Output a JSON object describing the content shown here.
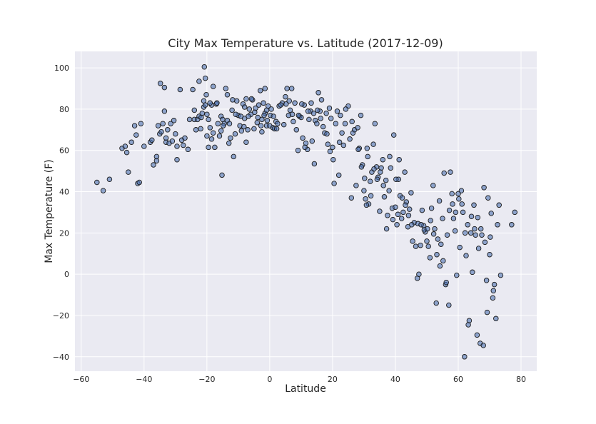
{
  "colors": {
    "plot_background": "#eaeaf2",
    "grid": "#ffffff",
    "marker_fill": "#4c72b0",
    "marker_edge": "#1a1a1a",
    "text": "#262626"
  },
  "chart_data": {
    "type": "scatter",
    "title": "City Max Temperature vs. Latitude (2017-12-09)",
    "xlabel": "Latitude",
    "ylabel": "Max Temperature (F)",
    "xlim": [
      -62,
      85
    ],
    "ylim": [
      -47,
      108
    ],
    "xticks": [
      -60,
      -40,
      -20,
      0,
      20,
      40,
      60,
      80
    ],
    "yticks": [
      -40,
      -20,
      0,
      20,
      40,
      60,
      80,
      100
    ],
    "xtick_labels": [
      "−60",
      "−40",
      "−20",
      "0",
      "20",
      "40",
      "60",
      "80"
    ],
    "ytick_labels": [
      "−40",
      "−20",
      "0",
      "20",
      "40",
      "60",
      "80",
      "100"
    ],
    "grid": true,
    "marker_alpha": 0.6,
    "points": [
      [
        -55,
        44.5
      ],
      [
        -53,
        40.5
      ],
      [
        -51,
        46
      ],
      [
        -47,
        61
      ],
      [
        -46,
        62
      ],
      [
        -45.5,
        59
      ],
      [
        -45,
        49.5
      ],
      [
        -43,
        72
      ],
      [
        -42.5,
        67.5
      ],
      [
        -42,
        44
      ],
      [
        -41.5,
        44.5
      ],
      [
        -41,
        73
      ],
      [
        -40,
        62
      ],
      [
        -38,
        64
      ],
      [
        -37.5,
        65
      ],
      [
        -37,
        53
      ],
      [
        -36,
        55
      ],
      [
        -35.5,
        72
      ],
      [
        -35,
        68
      ],
      [
        -34.8,
        92.5
      ],
      [
        -34.5,
        69
      ],
      [
        -34,
        73
      ],
      [
        -33.5,
        90.5
      ],
      [
        -33.5,
        79
      ],
      [
        -33,
        66
      ],
      [
        -33,
        64
      ],
      [
        -32,
        63.5
      ],
      [
        -31.5,
        73
      ],
      [
        -30.5,
        74.5
      ],
      [
        -30,
        68
      ],
      [
        -29.5,
        62
      ],
      [
        -29.5,
        55.5
      ],
      [
        -28.5,
        89.5
      ],
      [
        -28,
        65
      ],
      [
        -27.5,
        62.5
      ],
      [
        -26,
        60.5
      ],
      [
        -24.5,
        89.5
      ],
      [
        -24,
        79.5
      ],
      [
        -24,
        75
      ],
      [
        -23,
        75
      ],
      [
        -22.5,
        93.5
      ],
      [
        -22.5,
        76.5
      ],
      [
        -22,
        70.5
      ],
      [
        -21.5,
        78
      ],
      [
        -21,
        84
      ],
      [
        -21,
        81
      ],
      [
        -20.8,
        100.5
      ],
      [
        -20.5,
        95
      ],
      [
        -20.5,
        82
      ],
      [
        -20,
        77.5
      ],
      [
        -20,
        67
      ],
      [
        -19.5,
        61.5
      ],
      [
        -19.5,
        75
      ],
      [
        -19,
        71
      ],
      [
        -18.5,
        82
      ],
      [
        -18.5,
        65.5
      ],
      [
        -18,
        91
      ],
      [
        -18,
        68.5
      ],
      [
        -17.5,
        61.5
      ],
      [
        -17,
        82.5
      ],
      [
        -16.5,
        73
      ],
      [
        -16,
        67
      ],
      [
        -15.5,
        76.5
      ],
      [
        -15.5,
        69.5
      ],
      [
        -15.2,
        48
      ],
      [
        -15,
        75
      ],
      [
        -14.5,
        73
      ],
      [
        -14,
        90
      ],
      [
        -13.5,
        87
      ],
      [
        -13.5,
        74.5
      ],
      [
        -13,
        63.5
      ],
      [
        -12.5,
        66
      ],
      [
        -12,
        79.5
      ],
      [
        -11.5,
        57
      ],
      [
        -11,
        68
      ],
      [
        -10.5,
        84
      ],
      [
        -10,
        77
      ],
      [
        -9.5,
        72
      ],
      [
        -9,
        69.5
      ],
      [
        -8.5,
        82.5
      ],
      [
        -8,
        81
      ],
      [
        -8,
        75.5
      ],
      [
        -7.5,
        85
      ],
      [
        -7.5,
        64
      ],
      [
        -7,
        70
      ],
      [
        -6.5,
        80
      ],
      [
        -6,
        77.5
      ],
      [
        -5.5,
        84.5
      ],
      [
        -5,
        70.5
      ],
      [
        -4.5,
        80.5
      ],
      [
        -4,
        73.5
      ],
      [
        -3.5,
        82
      ],
      [
        -3,
        89
      ],
      [
        -2.5,
        75
      ],
      [
        -2.5,
        69
      ],
      [
        -2,
        83
      ],
      [
        -1.5,
        90
      ],
      [
        -1.5,
        78
      ],
      [
        -1,
        79.5
      ],
      [
        -1,
        72
      ],
      [
        -0.5,
        81.5
      ],
      [
        0,
        72
      ],
      [
        0.5,
        80
      ],
      [
        1,
        71
      ],
      [
        1.5,
        70.5
      ],
      [
        2,
        74
      ],
      [
        2.5,
        73
      ],
      [
        3,
        81.5
      ],
      [
        4,
        83
      ],
      [
        4.5,
        72.5
      ],
      [
        5,
        86
      ],
      [
        5.5,
        90
      ],
      [
        6,
        77
      ],
      [
        6.5,
        79.5
      ],
      [
        7,
        90
      ],
      [
        7.5,
        74
      ],
      [
        8,
        83
      ],
      [
        8.5,
        70
      ],
      [
        9,
        60
      ],
      [
        9.5,
        76.5
      ],
      [
        10,
        76
      ],
      [
        10.5,
        66
      ],
      [
        11,
        82
      ],
      [
        11.5,
        63.5
      ],
      [
        12,
        60.5
      ],
      [
        12.5,
        75
      ],
      [
        13,
        79
      ],
      [
        13.5,
        64.5
      ],
      [
        14,
        78
      ],
      [
        14.5,
        74.5
      ],
      [
        15,
        73
      ],
      [
        15.5,
        88
      ],
      [
        16,
        79
      ],
      [
        16.5,
        84.5
      ],
      [
        17,
        71.5
      ],
      [
        17.5,
        68.5
      ],
      [
        18,
        78
      ],
      [
        18.5,
        63
      ],
      [
        19,
        80.5
      ],
      [
        19.5,
        75.5
      ],
      [
        20,
        61.5
      ],
      [
        20.5,
        44
      ],
      [
        21,
        73
      ],
      [
        21.5,
        79
      ],
      [
        22,
        48
      ],
      [
        22.5,
        77
      ],
      [
        23,
        68.5
      ],
      [
        23.5,
        62.5
      ],
      [
        24,
        73
      ],
      [
        25,
        81.5
      ],
      [
        25.5,
        65.5
      ],
      [
        26,
        37
      ],
      [
        26.5,
        68.5
      ],
      [
        27,
        70
      ],
      [
        27.5,
        43
      ],
      [
        28,
        71
      ],
      [
        28.5,
        61
      ],
      [
        29,
        77
      ],
      [
        29.5,
        53
      ],
      [
        30,
        40.5
      ],
      [
        30.5,
        36.5
      ],
      [
        31,
        61
      ],
      [
        31.5,
        34
      ],
      [
        32,
        45
      ],
      [
        32.5,
        49.5
      ],
      [
        33,
        63
      ],
      [
        33.5,
        73
      ],
      [
        34,
        52
      ],
      [
        34.5,
        47
      ],
      [
        35,
        30.5
      ],
      [
        35.5,
        51.5
      ],
      [
        36,
        55.5
      ],
      [
        36.5,
        37.5
      ],
      [
        37,
        45.5
      ],
      [
        37.5,
        28.5
      ],
      [
        38,
        40.5
      ],
      [
        38.5,
        51.5
      ],
      [
        39,
        32
      ],
      [
        39.5,
        67.5
      ],
      [
        40,
        32.5
      ],
      [
        40.5,
        24
      ],
      [
        41,
        46
      ],
      [
        41.5,
        38
      ],
      [
        42,
        27
      ],
      [
        42.5,
        30
      ],
      [
        43,
        49.5
      ],
      [
        43.5,
        35
      ],
      [
        44,
        23
      ],
      [
        44.5,
        31.5
      ],
      [
        45,
        39.5
      ],
      [
        45.5,
        16
      ],
      [
        46,
        25
      ],
      [
        46.5,
        13.5
      ],
      [
        47,
        -2
      ],
      [
        47.5,
        0
      ],
      [
        48,
        14
      ],
      [
        48.5,
        31
      ],
      [
        49,
        23.5
      ],
      [
        49.5,
        20.5
      ],
      [
        50,
        16
      ],
      [
        50.5,
        13.5
      ],
      [
        51,
        8
      ],
      [
        51.5,
        32
      ],
      [
        52,
        43
      ],
      [
        52.5,
        22
      ],
      [
        53,
        -14
      ],
      [
        53.5,
        17
      ],
      [
        54,
        35.5
      ],
      [
        54.5,
        14.5
      ],
      [
        55,
        27
      ],
      [
        55.5,
        49
      ],
      [
        56,
        -5
      ],
      [
        56.5,
        19
      ],
      [
        57,
        -15
      ],
      [
        57.5,
        49.5
      ],
      [
        58,
        39
      ],
      [
        58.5,
        27
      ],
      [
        59,
        21
      ],
      [
        59.5,
        -0.5
      ],
      [
        60,
        39
      ],
      [
        60.5,
        13
      ],
      [
        61,
        40.5
      ],
      [
        61.5,
        30
      ],
      [
        62,
        -40
      ],
      [
        62.5,
        9
      ],
      [
        63,
        24
      ],
      [
        63.5,
        -22.5
      ],
      [
        64,
        20
      ],
      [
        64.5,
        1
      ],
      [
        65,
        33.5
      ],
      [
        65.5,
        19
      ],
      [
        66,
        -29.5
      ],
      [
        66.5,
        12.5
      ],
      [
        67,
        -33.5
      ],
      [
        67.5,
        19
      ],
      [
        68,
        -34.5
      ],
      [
        68.5,
        15.5
      ],
      [
        69,
        -3
      ],
      [
        69.5,
        37
      ],
      [
        70,
        9.5
      ],
      [
        70.5,
        29.5
      ],
      [
        71,
        -11.5
      ],
      [
        71.5,
        -5
      ],
      [
        72,
        -21.5
      ],
      [
        72.5,
        24
      ],
      [
        73,
        33.5
      ],
      [
        73.5,
        -0.5
      ],
      [
        77,
        24
      ],
      [
        78,
        30
      ],
      [
        -44,
        64
      ],
      [
        -36,
        57
      ],
      [
        -32.5,
        70
      ],
      [
        -31,
        64.5
      ],
      [
        -27,
        66
      ],
      [
        -25.5,
        75
      ],
      [
        -23.5,
        70
      ],
      [
        -21.8,
        76
      ],
      [
        -20.2,
        87
      ],
      [
        -19,
        83
      ],
      [
        -16.8,
        83
      ],
      [
        -14.8,
        72
      ],
      [
        -12.8,
        73
      ],
      [
        -11.8,
        84.5
      ],
      [
        -10.8,
        77.5
      ],
      [
        -9.2,
        76.5
      ],
      [
        -8.2,
        71.5
      ],
      [
        -6.8,
        76.5
      ],
      [
        -5.8,
        85
      ],
      [
        -4.8,
        78.5
      ],
      [
        -3.8,
        76
      ],
      [
        -2.8,
        72
      ],
      [
        -1.8,
        77
      ],
      [
        -0.8,
        74.5
      ],
      [
        0.2,
        77
      ],
      [
        1.2,
        76.5
      ],
      [
        2.2,
        70.5
      ],
      [
        3.5,
        82
      ],
      [
        5.2,
        82.5
      ],
      [
        6.2,
        84
      ],
      [
        7.2,
        77.5
      ],
      [
        9.2,
        77
      ],
      [
        10.2,
        82.5
      ],
      [
        11.2,
        61.5
      ],
      [
        12.2,
        79
      ],
      [
        13.2,
        83
      ],
      [
        14.2,
        53.5
      ],
      [
        15.2,
        79.5
      ],
      [
        16.2,
        75.5
      ],
      [
        18.2,
        68
      ],
      [
        19.2,
        59.5
      ],
      [
        20.2,
        55.5
      ],
      [
        22.2,
        64
      ],
      [
        24.2,
        80
      ],
      [
        26.2,
        74
      ],
      [
        28.2,
        60.5
      ],
      [
        29.2,
        52
      ],
      [
        30.2,
        46.5
      ],
      [
        30.8,
        33.5
      ],
      [
        31.2,
        57
      ],
      [
        32.2,
        38
      ],
      [
        33.2,
        51
      ],
      [
        34.2,
        46
      ],
      [
        35.2,
        49.5
      ],
      [
        36.2,
        43
      ],
      [
        37.2,
        22
      ],
      [
        38.2,
        57
      ],
      [
        39.2,
        26.5
      ],
      [
        40.2,
        46
      ],
      [
        40.8,
        29
      ],
      [
        41.2,
        55.5
      ],
      [
        42.2,
        37
      ],
      [
        43.2,
        33.5
      ],
      [
        44.2,
        28.5
      ],
      [
        45.2,
        24
      ],
      [
        47.2,
        24.5
      ],
      [
        48.2,
        24
      ],
      [
        49.2,
        21.5
      ],
      [
        50.2,
        22
      ],
      [
        51.2,
        26
      ],
      [
        52.2,
        19.5
      ],
      [
        53.2,
        9.5
      ],
      [
        54.2,
        4
      ],
      [
        55.2,
        6.5
      ],
      [
        56.2,
        -4
      ],
      [
        57.2,
        31
      ],
      [
        58.2,
        34
      ],
      [
        59.2,
        30
      ],
      [
        60.2,
        36.5
      ],
      [
        61.2,
        34
      ],
      [
        62.2,
        20
      ],
      [
        63.2,
        -24.5
      ],
      [
        64.2,
        28
      ],
      [
        65.2,
        22
      ],
      [
        66.2,
        27.5
      ],
      [
        67.2,
        22
      ],
      [
        68.2,
        42
      ],
      [
        69.2,
        -18.5
      ],
      [
        70.2,
        18
      ],
      [
        71.2,
        -8
      ]
    ]
  }
}
